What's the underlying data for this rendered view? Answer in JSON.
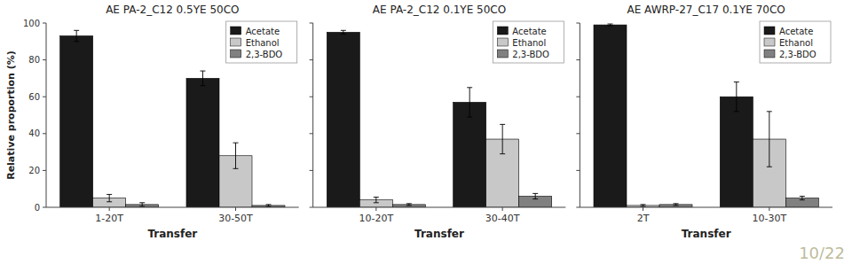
{
  "chart_data": [
    {
      "type": "bar",
      "title": "AE PA-2_C12 0.5YE 50CO",
      "categories": [
        "1-20T",
        "30-50T"
      ],
      "series": [
        {
          "name": "Acetate",
          "color": "#1a1a1a",
          "values": [
            93,
            70
          ],
          "errors": [
            3,
            4
          ]
        },
        {
          "name": "Ethanol",
          "color": "#c8c8c8",
          "values": [
            5,
            28
          ],
          "errors": [
            2,
            7
          ]
        },
        {
          "name": "2,3-BDO",
          "color": "#808080",
          "values": [
            1.5,
            1
          ],
          "errors": [
            1,
            0.5
          ]
        }
      ],
      "xlabel": "Transfer",
      "ylabel": "Relative proportion (%)",
      "ylim": [
        0,
        100
      ],
      "yticks": [
        0,
        20,
        40,
        60,
        80,
        100
      ],
      "grid": false,
      "legend": "upper right"
    },
    {
      "type": "bar",
      "title": "AE PA-2_C12 0.1YE 50CO",
      "categories": [
        "10-20T",
        "30-40T"
      ],
      "series": [
        {
          "name": "Acetate",
          "color": "#1a1a1a",
          "values": [
            95,
            57
          ],
          "errors": [
            1,
            8
          ]
        },
        {
          "name": "Ethanol",
          "color": "#c8c8c8",
          "values": [
            4,
            37
          ],
          "errors": [
            1.5,
            8
          ]
        },
        {
          "name": "2,3-BDO",
          "color": "#808080",
          "values": [
            1.5,
            6
          ],
          "errors": [
            0.5,
            1.5
          ]
        }
      ],
      "xlabel": "Transfer",
      "ylim": [
        0,
        100
      ],
      "yticks": [
        0,
        20,
        40,
        60,
        80,
        100
      ],
      "grid": false,
      "legend": "upper right",
      "tick_labels": "x"
    },
    {
      "type": "bar",
      "title": "AE AWRP-27_C17 0.1YE 70CO",
      "categories": [
        "2T",
        "10-30T"
      ],
      "series": [
        {
          "name": "Acetate",
          "color": "#1a1a1a",
          "values": [
            99,
            60
          ],
          "errors": [
            0.5,
            8
          ]
        },
        {
          "name": "Ethanol",
          "color": "#c8c8c8",
          "values": [
            1,
            37
          ],
          "errors": [
            0.5,
            15
          ]
        },
        {
          "name": "2,3-BDO",
          "color": "#808080",
          "values": [
            1.5,
            5
          ],
          "errors": [
            0.5,
            1
          ]
        }
      ],
      "xlabel": "Transfer",
      "ylim": [
        0,
        100
      ],
      "yticks": [
        0,
        20,
        40,
        60,
        80,
        100
      ],
      "grid": false,
      "legend": "upper right",
      "tick_labels": "x",
      "annotations": [
        "10/22"
      ]
    }
  ]
}
